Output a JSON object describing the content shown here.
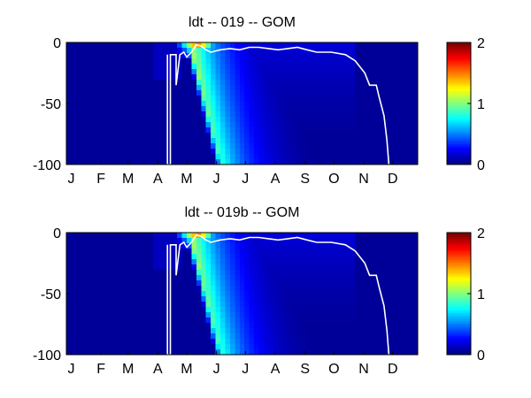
{
  "chart_data": [
    {
      "type": "heatmap",
      "title": "ldt -- 019 -- GOM",
      "x_tick_labels": [
        "J",
        "F",
        "M",
        "A",
        "M",
        "J",
        "J",
        "A",
        "S",
        "O",
        "N",
        "D"
      ],
      "y_tick_labels": [
        "0",
        "-50",
        "-100"
      ],
      "ylim": [
        -100,
        0
      ],
      "colorbar": {
        "range": [
          0,
          2
        ],
        "tick_labels": [
          "0",
          "1",
          "2"
        ],
        "colormap": "jet"
      },
      "field": {
        "bloom_start_day": 122,
        "bloom_peak_day": 131,
        "bloom_peak_value": 1.35,
        "bloom_decay_days": 85,
        "surface_peak_value": 1.9,
        "surface_band_days": [
          113,
          160
        ]
      },
      "white_contour": [
        [
          105,
          -10
        ],
        [
          105,
          -100
        ],
        [
          108,
          -100
        ],
        [
          108,
          -10
        ],
        [
          114,
          -10
        ],
        [
          114,
          -35
        ],
        [
          118,
          -10
        ],
        [
          122,
          -8
        ],
        [
          125,
          -12
        ],
        [
          130,
          -8
        ],
        [
          135,
          -2
        ],
        [
          140,
          -3
        ],
        [
          145,
          -6
        ],
        [
          150,
          -8
        ],
        [
          160,
          -6
        ],
        [
          170,
          -5
        ],
        [
          180,
          -6
        ],
        [
          190,
          -4
        ],
        [
          200,
          -4
        ],
        [
          210,
          -5
        ],
        [
          220,
          -6
        ],
        [
          230,
          -5
        ],
        [
          240,
          -4
        ],
        [
          250,
          -6
        ],
        [
          260,
          -8
        ],
        [
          275,
          -8
        ],
        [
          290,
          -10
        ],
        [
          300,
          -15
        ],
        [
          310,
          -25
        ],
        [
          315,
          -35
        ],
        [
          322,
          -35
        ],
        [
          325,
          -45
        ],
        [
          330,
          -60
        ],
        [
          333,
          -80
        ],
        [
          335,
          -100
        ]
      ]
    },
    {
      "type": "heatmap",
      "title": "ldt -- 019b -- GOM",
      "x_tick_labels": [
        "J",
        "F",
        "M",
        "A",
        "M",
        "J",
        "J",
        "A",
        "S",
        "O",
        "N",
        "D"
      ],
      "y_tick_labels": [
        "0",
        "-50",
        "-100"
      ],
      "ylim": [
        -100,
        0
      ],
      "colorbar": {
        "range": [
          0,
          2
        ],
        "tick_labels": [
          "0",
          "1",
          "2"
        ],
        "colormap": "jet"
      },
      "field": {
        "bloom_start_day": 122,
        "bloom_peak_day": 131,
        "bloom_peak_value": 1.35,
        "bloom_decay_days": 85,
        "surface_peak_value": 1.9,
        "surface_band_days": [
          113,
          160
        ]
      },
      "white_contour": [
        [
          105,
          -10
        ],
        [
          105,
          -100
        ],
        [
          108,
          -100
        ],
        [
          108,
          -10
        ],
        [
          114,
          -10
        ],
        [
          114,
          -35
        ],
        [
          118,
          -10
        ],
        [
          122,
          -8
        ],
        [
          125,
          -12
        ],
        [
          130,
          -8
        ],
        [
          135,
          -2
        ],
        [
          140,
          -3
        ],
        [
          145,
          -6
        ],
        [
          150,
          -8
        ],
        [
          160,
          -6
        ],
        [
          170,
          -5
        ],
        [
          180,
          -6
        ],
        [
          190,
          -4
        ],
        [
          200,
          -4
        ],
        [
          210,
          -5
        ],
        [
          220,
          -6
        ],
        [
          230,
          -5
        ],
        [
          240,
          -4
        ],
        [
          250,
          -6
        ],
        [
          260,
          -8
        ],
        [
          275,
          -8
        ],
        [
          290,
          -10
        ],
        [
          300,
          -15
        ],
        [
          310,
          -25
        ],
        [
          315,
          -35
        ],
        [
          322,
          -35
        ],
        [
          325,
          -45
        ],
        [
          330,
          -60
        ],
        [
          333,
          -80
        ],
        [
          335,
          -100
        ]
      ]
    }
  ]
}
